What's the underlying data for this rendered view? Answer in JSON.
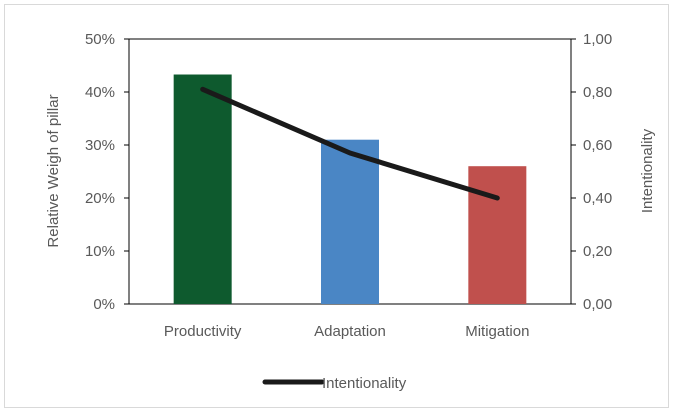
{
  "chart_data": {
    "type": "bar",
    "categories": [
      "Productivity",
      "Adaptation",
      "Mitigation"
    ],
    "bar_series": {
      "values": [
        43.3,
        31.0,
        26.0
      ],
      "colors": [
        "#0e5a2e",
        "#4a86c5",
        "#c0504d"
      ]
    },
    "line_series": {
      "name": "Intentionality",
      "values": [
        0.81,
        0.57,
        0.4
      ],
      "color": "#1a1a1a"
    },
    "ylabel": "Relative Weigh of pillar",
    "y2label": "Intentionality",
    "ylim": [
      0,
      50
    ],
    "y2lim": [
      0,
      1
    ],
    "yticks": [
      "0%",
      "10%",
      "20%",
      "30%",
      "40%",
      "50%"
    ],
    "y2ticks": [
      "0,00",
      "0,20",
      "0,40",
      "0,60",
      "0,80",
      "1,00"
    ],
    "legend": {
      "position": "bottom",
      "entries": [
        "Intentionality"
      ]
    },
    "grid": false
  }
}
